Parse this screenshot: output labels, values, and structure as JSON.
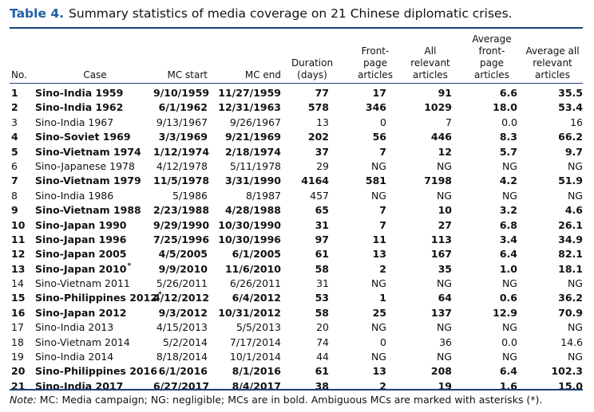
{
  "title": {
    "label": "Table 4.",
    "text": "Summary statistics of media coverage on 21 Chinese diplomatic crises."
  },
  "columns": [
    {
      "key": "no",
      "label": "No."
    },
    {
      "key": "case",
      "label": "Case"
    },
    {
      "key": "mc_start",
      "label": "MC start"
    },
    {
      "key": "mc_end",
      "label": "MC end"
    },
    {
      "key": "duration",
      "label": "Duration\n(days)"
    },
    {
      "key": "front",
      "label": "Front-\npage\narticles"
    },
    {
      "key": "all",
      "label": "All\nrelevant\narticles"
    },
    {
      "key": "avg_front",
      "label": "Average\nfront-\npage\narticles"
    },
    {
      "key": "avg_all",
      "label": "Average all\nrelevant\narticles"
    }
  ],
  "rows": [
    {
      "no": "1",
      "case": "Sino-India 1959",
      "marker": "",
      "mc_start": "9/10/1959",
      "mc_end": "11/27/1959",
      "duration": "77",
      "front": "17",
      "all": "91",
      "avg_front": "6.6",
      "avg_all": "35.5",
      "bold": true
    },
    {
      "no": "2",
      "case": "Sino-India 1962",
      "marker": "",
      "mc_start": "6/1/1962",
      "mc_end": "12/31/1963",
      "duration": "578",
      "front": "346",
      "all": "1029",
      "avg_front": "18.0",
      "avg_all": "53.4",
      "bold": true
    },
    {
      "no": "3",
      "case": "Sino-India 1967",
      "marker": "",
      "mc_start": "9/13/1967",
      "mc_end": "9/26/1967",
      "duration": "13",
      "front": "0",
      "all": "7",
      "avg_front": "0.0",
      "avg_all": "16",
      "bold": false
    },
    {
      "no": "4",
      "case": "Sino-Soviet 1969",
      "marker": "",
      "mc_start": "3/3/1969",
      "mc_end": "9/21/1969",
      "duration": "202",
      "front": "56",
      "all": "446",
      "avg_front": "8.3",
      "avg_all": "66.2",
      "bold": true
    },
    {
      "no": "5",
      "case": "Sino-Vietnam 1974",
      "marker": "",
      "mc_start": "1/12/1974",
      "mc_end": "2/18/1974",
      "duration": "37",
      "front": "7",
      "all": "12",
      "avg_front": "5.7",
      "avg_all": "9.7",
      "bold": true
    },
    {
      "no": "6",
      "case": "Sino-Japanese 1978",
      "marker": "",
      "mc_start": "4/12/1978",
      "mc_end": "5/11/1978",
      "duration": "29",
      "front": "NG",
      "all": "NG",
      "avg_front": "NG",
      "avg_all": "NG",
      "bold": false
    },
    {
      "no": "7",
      "case": "Sino-Vietnam 1979",
      "marker": "",
      "mc_start": "11/5/1978",
      "mc_end": "3/31/1990",
      "duration": "4164",
      "front": "581",
      "all": "7198",
      "avg_front": "4.2",
      "avg_all": "51.9",
      "bold": true
    },
    {
      "no": "8",
      "case": "Sino-India 1986",
      "marker": "",
      "mc_start": "5/1986",
      "mc_end": "8/1987",
      "duration": "457",
      "front": "NG",
      "all": "NG",
      "avg_front": "NG",
      "avg_all": "NG",
      "bold": false
    },
    {
      "no": "9",
      "case": "Sino-Vietnam 1988",
      "marker": "",
      "mc_start": "2/23/1988",
      "mc_end": "4/28/1988",
      "duration": "65",
      "front": "7",
      "all": "10",
      "avg_front": "3.2",
      "avg_all": "4.6",
      "bold": true
    },
    {
      "no": "10",
      "case": "Sino-Japan 1990",
      "marker": "",
      "mc_start": "9/29/1990",
      "mc_end": "10/30/1990",
      "duration": "31",
      "front": "7",
      "all": "27",
      "avg_front": "6.8",
      "avg_all": "26.1",
      "bold": true
    },
    {
      "no": "11",
      "case": "Sino-Japan 1996",
      "marker": "",
      "mc_start": "7/25/1996",
      "mc_end": "10/30/1996",
      "duration": "97",
      "front": "11",
      "all": "113",
      "avg_front": "3.4",
      "avg_all": "34.9",
      "bold": true
    },
    {
      "no": "12",
      "case": "Sino-Japan 2005",
      "marker": "",
      "mc_start": "4/5/2005",
      "mc_end": "6/1/2005",
      "duration": "61",
      "front": "13",
      "all": "167",
      "avg_front": "6.4",
      "avg_all": "82.1",
      "bold": true
    },
    {
      "no": "13",
      "case": "Sino-Japan 2010",
      "marker": "*",
      "mc_start": "9/9/2010",
      "mc_end": "11/6/2010",
      "duration": "58",
      "front": "2",
      "all": "35",
      "avg_front": "1.0",
      "avg_all": "18.1",
      "bold": true
    },
    {
      "no": "14",
      "case": "Sino-Vietnam 2011",
      "marker": "",
      "mc_start": "5/26/2011",
      "mc_end": "6/26/2011",
      "duration": "31",
      "front": "NG",
      "all": "NG",
      "avg_front": "NG",
      "avg_all": "NG",
      "bold": false
    },
    {
      "no": "15",
      "case": "Sino-Philippines 2012",
      "marker": "*",
      "mc_start": "4/12/2012",
      "mc_end": "6/4/2012",
      "duration": "53",
      "front": "1",
      "all": "64",
      "avg_front": "0.6",
      "avg_all": "36.2",
      "bold": true
    },
    {
      "no": "16",
      "case": "Sino-Japan 2012",
      "marker": "",
      "mc_start": "9/3/2012",
      "mc_end": "10/31/2012",
      "duration": "58",
      "front": "25",
      "all": "137",
      "avg_front": "12.9",
      "avg_all": "70.9",
      "bold": true
    },
    {
      "no": "17",
      "case": "Sino-India 2013",
      "marker": "",
      "mc_start": "4/15/2013",
      "mc_end": "5/5/2013",
      "duration": "20",
      "front": "NG",
      "all": "NG",
      "avg_front": "NG",
      "avg_all": "NG",
      "bold": false
    },
    {
      "no": "18",
      "case": "Sino-Vietnam 2014",
      "marker": "",
      "mc_start": "5/2/2014",
      "mc_end": "7/17/2014",
      "duration": "74",
      "front": "0",
      "all": "36",
      "avg_front": "0.0",
      "avg_all": "14.6",
      "bold": false
    },
    {
      "no": "19",
      "case": "Sino-India 2014",
      "marker": "",
      "mc_start": "8/18/2014",
      "mc_end": "10/1/2014",
      "duration": "44",
      "front": "NG",
      "all": "NG",
      "avg_front": "NG",
      "avg_all": "NG",
      "bold": false
    },
    {
      "no": "20",
      "case": "Sino-Philippines 2016",
      "marker": "",
      "mc_start": "6/1/2016",
      "mc_end": "8/1/2016",
      "duration": "61",
      "front": "13",
      "all": "208",
      "avg_front": "6.4",
      "avg_all": "102.3",
      "bold": true
    },
    {
      "no": "21",
      "case": "Sino-India 2017",
      "marker": "",
      "mc_start": "6/27/2017",
      "mc_end": "8/4/2017",
      "duration": "38",
      "front": "2",
      "all": "19",
      "avg_front": "1.6",
      "avg_all": "15.0",
      "bold": true
    }
  ],
  "note": {
    "label": "Note:",
    "text": " MC: Media campaign; NG: negligible; MCs are in bold. Ambiguous MCs are marked with asterisks (*)."
  },
  "colors": {
    "title_label": "#1f5fa8",
    "rules": "#1f3f7a"
  }
}
